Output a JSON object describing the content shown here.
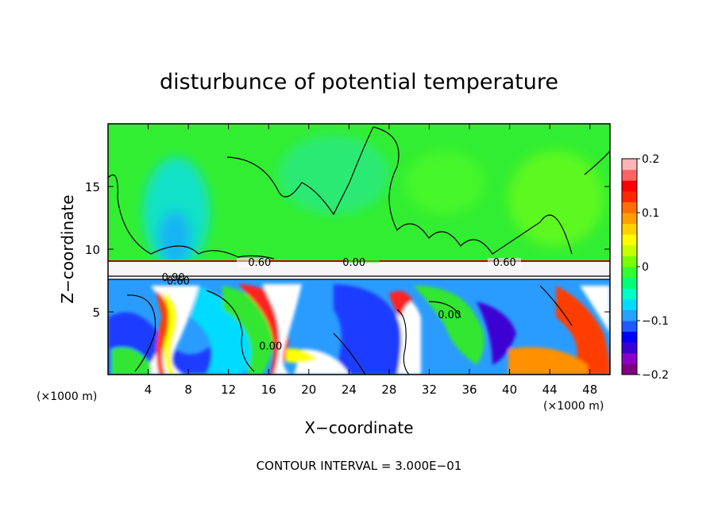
{
  "chart_data": {
    "type": "heatmap",
    "title": "disturbunce of potential temperature",
    "xlabel": "X−coordinate",
    "ylabel": "Z−coordinate",
    "x_unit": "(×1000 m)",
    "y_unit": "(×1000 m)",
    "footer": "CONTOUR INTERVAL = 3.000E−01",
    "xlim": [
      0,
      50
    ],
    "ylim": [
      0,
      20
    ],
    "x_ticks": [
      4,
      8,
      12,
      16,
      20,
      24,
      28,
      32,
      36,
      40,
      44,
      48
    ],
    "y_ticks": [
      5,
      10,
      15
    ],
    "colorbar": {
      "range": [
        -0.2,
        0.2
      ],
      "ticks": [
        0.2,
        0.1,
        0,
        -0.1,
        -0.2
      ],
      "tick_labels": [
        "0.2",
        "0.1",
        "0",
        "−0.1",
        "−0.2"
      ],
      "colors": [
        "#7f007f",
        "#8b00c8",
        "#3c00d2",
        "#0000ff",
        "#1e5aff",
        "#28a0ff",
        "#00dcff",
        "#00ffc8",
        "#00ff78",
        "#32ff32",
        "#78ff00",
        "#c8ff00",
        "#ffff00",
        "#ffd200",
        "#ffa000",
        "#ff6e00",
        "#ff2800",
        "#ff0000",
        "#ff6464",
        "#ffb4b4"
      ]
    },
    "contour_labels": [
      {
        "text": "0.60",
        "x": 15.1,
        "z": 9.0
      },
      {
        "text": "0.00",
        "x": 24.5,
        "z": 9.0
      },
      {
        "text": "0.60",
        "x": 39.5,
        "z": 9.0
      },
      {
        "text": "0.90",
        "x": 6.5,
        "z": 7.8
      },
      {
        "text": "0.60",
        "x": 7.0,
        "z": 7.5
      },
      {
        "text": "0.00",
        "x": 34.0,
        "z": 4.8
      },
      {
        "text": "0.00",
        "x": 16.2,
        "z": 2.3
      }
    ]
  }
}
